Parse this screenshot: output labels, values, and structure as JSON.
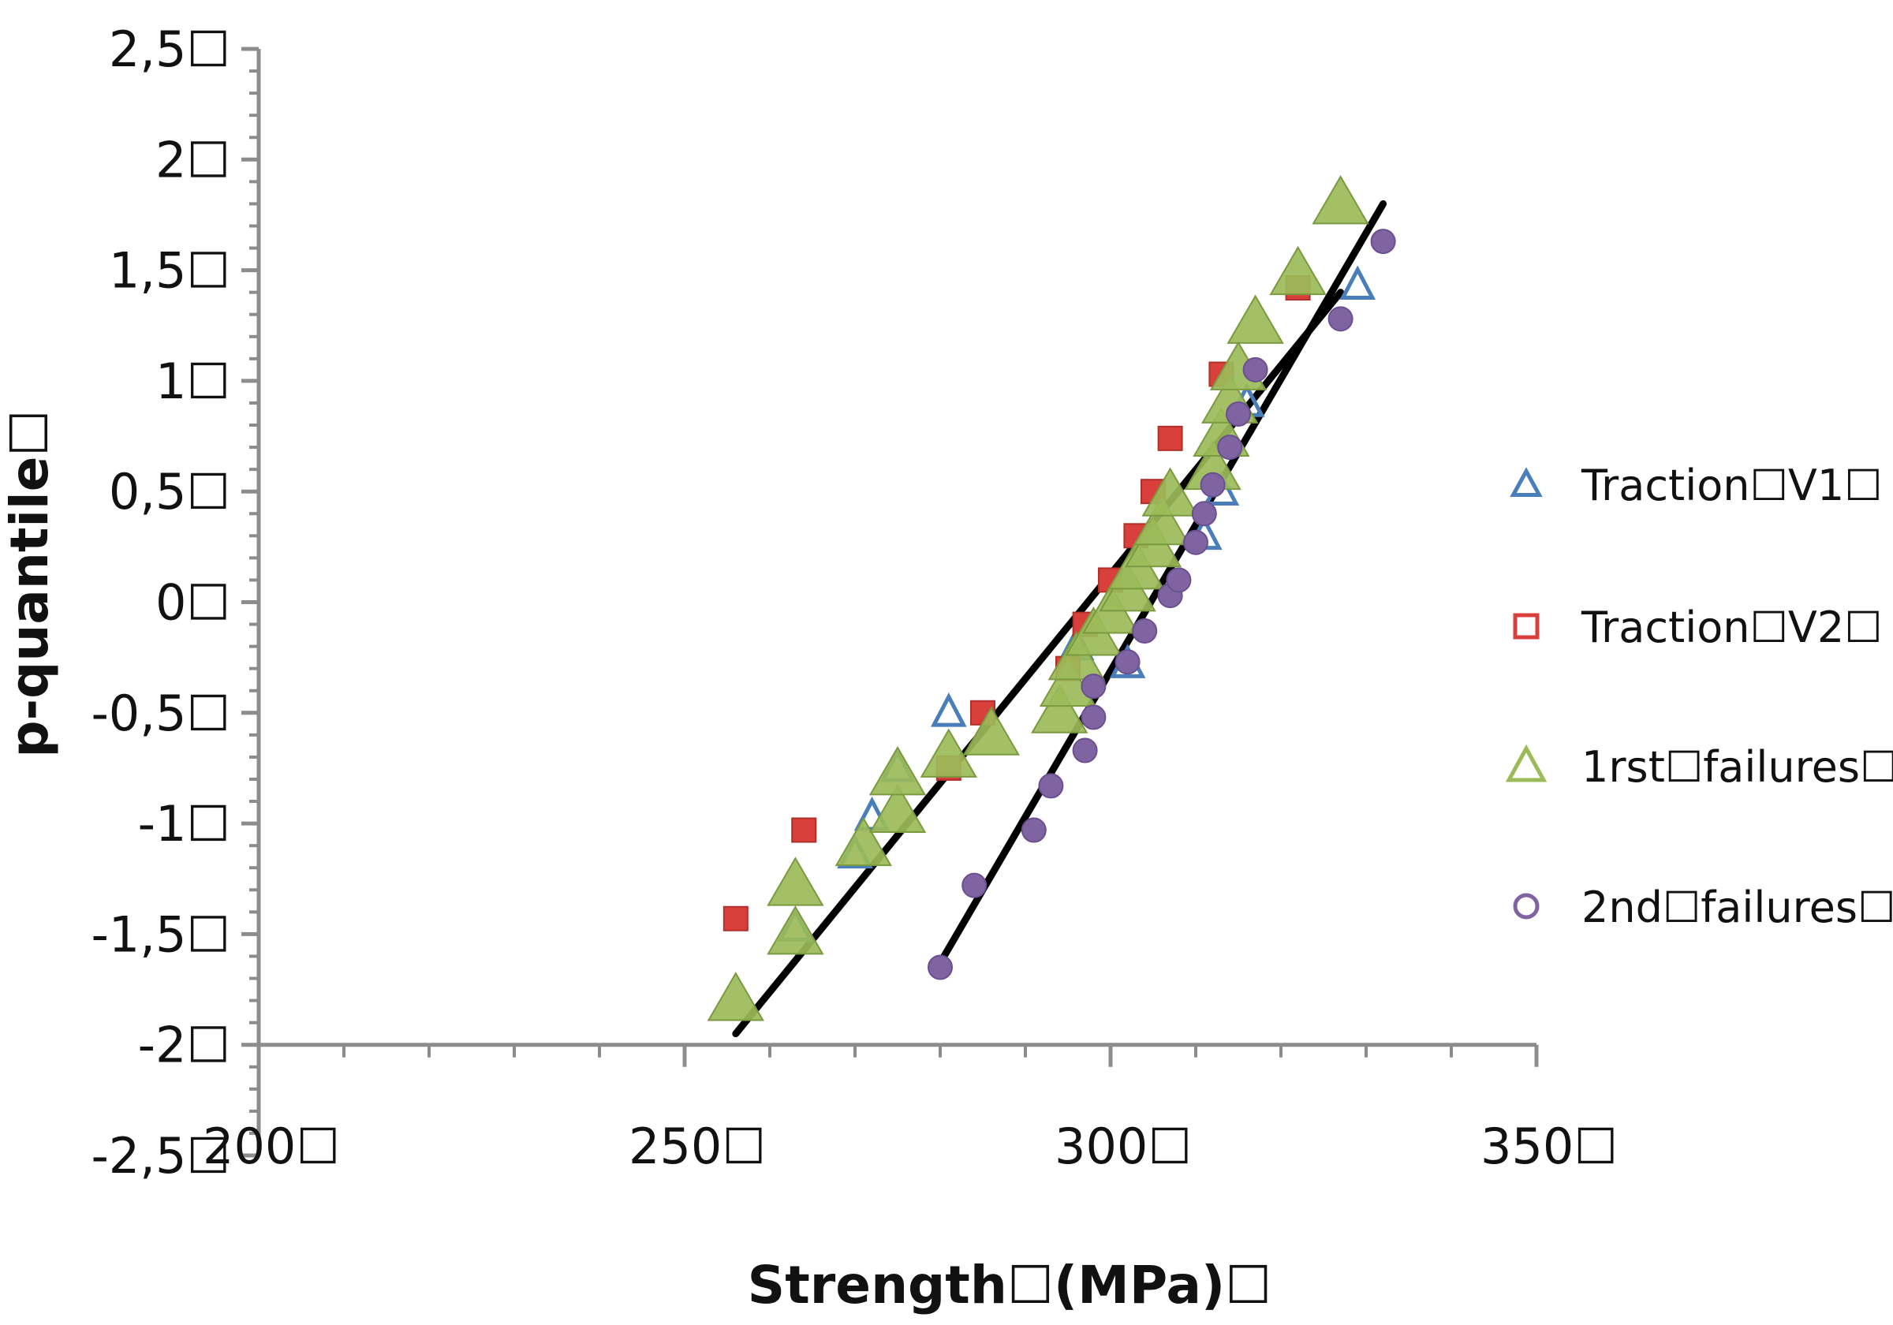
{
  "chart_data": {
    "type": "scatter",
    "title": "",
    "xlabel": "Strength☐(MPa)☐",
    "ylabel": "p-quantile☐",
    "xlim": [
      200,
      350
    ],
    "ylim": [
      -2.5,
      2.5
    ],
    "x_ticks": [
      200,
      250,
      300,
      350
    ],
    "x_tick_labels": [
      "200☐",
      "250☐",
      "300☐",
      "350☐"
    ],
    "y_ticks": [
      2.5,
      2,
      1.5,
      1,
      0.5,
      0,
      -0.5,
      -1,
      -1.5,
      -2,
      -2.5
    ],
    "y_tick_labels": [
      "2,5☐",
      "2☐",
      "1,5☐",
      "1☐",
      "0,5☐",
      "0☐",
      "-0,5☐",
      "-1☐",
      "-1,5☐",
      "-2☐",
      "-2,5☐"
    ],
    "x_axis_crosses_y": -2,
    "grid": false,
    "legend_position": "right",
    "series": [
      {
        "name": "Traction☐V1☐",
        "marker": "triangle-open",
        "color": "#4a7ebb",
        "points": [
          [
            263,
            -1.47
          ],
          [
            270,
            -1.14
          ],
          [
            272,
            -0.97
          ],
          [
            275,
            -0.75
          ],
          [
            281,
            -0.5
          ],
          [
            296,
            -0.2
          ],
          [
            302,
            -0.28
          ],
          [
            311,
            0.3
          ],
          [
            313,
            0.5
          ],
          [
            316,
            0.9
          ],
          [
            329,
            1.43
          ]
        ]
      },
      {
        "name": "Traction☐V2☐",
        "marker": "square",
        "color": "#d9403b",
        "points": [
          [
            256,
            -1.43
          ],
          [
            264,
            -1.03
          ],
          [
            281,
            -0.75
          ],
          [
            285,
            -0.5
          ],
          [
            295,
            -0.3
          ],
          [
            297,
            -0.1
          ],
          [
            300,
            0.1
          ],
          [
            303,
            0.3
          ],
          [
            305,
            0.5
          ],
          [
            307,
            0.74
          ],
          [
            313,
            1.03
          ],
          [
            322,
            1.42
          ]
        ]
      },
      {
        "name": "1rst☐failures☐",
        "marker": "triangle",
        "color": "#9bbb59",
        "points": [
          [
            256,
            -1.8
          ],
          [
            263,
            -1.5
          ],
          [
            263,
            -1.28
          ],
          [
            271,
            -1.1
          ],
          [
            275,
            -0.95
          ],
          [
            275,
            -0.78
          ],
          [
            281,
            -0.7
          ],
          [
            286,
            -0.6
          ],
          [
            294,
            -0.5
          ],
          [
            295,
            -0.38
          ],
          [
            296,
            -0.26
          ],
          [
            298,
            -0.15
          ],
          [
            300,
            -0.05
          ],
          [
            302,
            0.05
          ],
          [
            303,
            0.15
          ],
          [
            305,
            0.25
          ],
          [
            306,
            0.35
          ],
          [
            307,
            0.48
          ],
          [
            312,
            0.6
          ],
          [
            313,
            0.75
          ],
          [
            314,
            0.9
          ],
          [
            315,
            1.05
          ],
          [
            317,
            1.26
          ],
          [
            322,
            1.48
          ],
          [
            327,
            1.8
          ]
        ]
      },
      {
        "name": "2nd☐failures☐",
        "marker": "circle",
        "color": "#8064a2",
        "points": [
          [
            280,
            -1.65
          ],
          [
            284,
            -1.28
          ],
          [
            291,
            -1.03
          ],
          [
            293,
            -0.83
          ],
          [
            297,
            -0.67
          ],
          [
            298,
            -0.52
          ],
          [
            298,
            -0.38
          ],
          [
            302,
            -0.27
          ],
          [
            304,
            -0.13
          ],
          [
            307,
            0.03
          ],
          [
            308,
            0.1
          ],
          [
            310,
            0.27
          ],
          [
            311,
            0.4
          ],
          [
            312,
            0.53
          ],
          [
            314,
            0.7
          ],
          [
            315,
            0.85
          ],
          [
            317,
            1.05
          ],
          [
            327,
            1.28
          ],
          [
            332,
            1.63
          ]
        ]
      }
    ],
    "trend_lines": [
      {
        "from": [
          256,
          -1.95
        ],
        "to": [
          327,
          1.4
        ],
        "color": "#000000"
      },
      {
        "from": [
          280,
          -1.63
        ],
        "to": [
          332,
          1.8
        ],
        "color": "#000000"
      }
    ]
  }
}
